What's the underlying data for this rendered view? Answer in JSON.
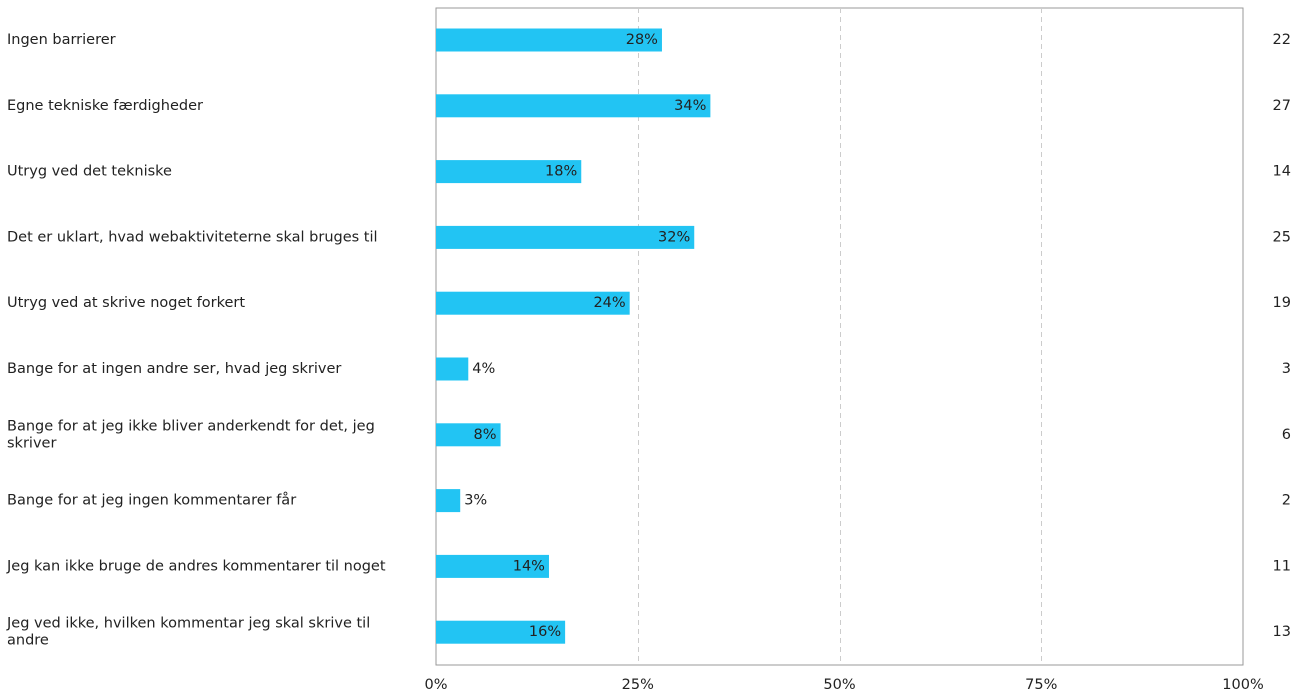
{
  "chart_data": {
    "type": "bar",
    "orientation": "horizontal",
    "categories": [
      [
        "Ingen barrierer"
      ],
      [
        "Egne tekniske færdigheder"
      ],
      [
        "Utryg ved det tekniske"
      ],
      [
        "Det er uklart, hvad webaktiviteterne skal bruges til"
      ],
      [
        "Utryg ved at skrive noget forkert"
      ],
      [
        "Bange for at ingen andre ser, hvad jeg skriver"
      ],
      [
        "Bange for at jeg ikke bliver anderkendt for det, jeg",
        "skriver"
      ],
      [
        "Bange for at jeg ingen kommentarer får"
      ],
      [
        "Jeg kan ikke bruge de andres kommentarer til noget"
      ],
      [
        "Jeg ved ikke, hvilken kommentar jeg skal skrive til",
        "andre"
      ]
    ],
    "values": [
      28,
      34,
      18,
      32,
      24,
      4,
      8,
      3,
      14,
      16
    ],
    "value_labels": [
      "28%",
      "34%",
      "18%",
      "32%",
      "24%",
      "4%",
      "8%",
      "3%",
      "14%",
      "16%"
    ],
    "counts": [
      "22",
      "27",
      "14",
      "25",
      "19",
      "3",
      "6",
      "2",
      "11",
      "13"
    ],
    "xlim": [
      0,
      100
    ],
    "x_ticks": [
      0,
      25,
      50,
      75,
      100
    ],
    "x_tick_labels": [
      "0%",
      "25%",
      "50%",
      "75%",
      "100%"
    ],
    "grid": "vertical dashed",
    "legend": "none",
    "bar_color": "#22c4f3",
    "grid_color": "#cccccc",
    "axis_color": "#999999",
    "title": "",
    "xlabel": "",
    "ylabel": ""
  }
}
